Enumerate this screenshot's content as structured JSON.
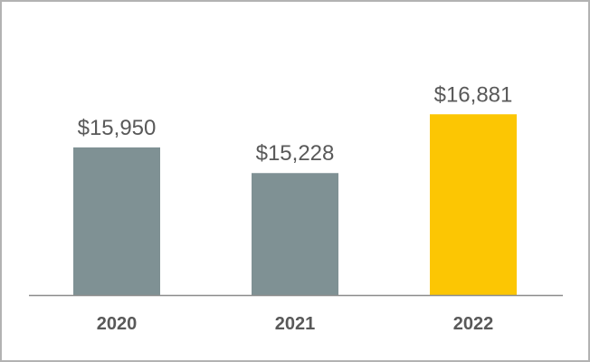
{
  "chart_data": {
    "type": "bar",
    "categories": [
      "2020",
      "2021",
      "2022"
    ],
    "values": [
      15950,
      15228,
      16881
    ],
    "value_labels": [
      "$15,950",
      "$15,228",
      "$16,881"
    ],
    "ylim": [
      11800,
      17600
    ],
    "grid": false,
    "colors": [
      "#7f9194",
      "#7f9194",
      "#fcc603"
    ],
    "axis_color": "#8c8c8c",
    "label_color": "#595959"
  }
}
